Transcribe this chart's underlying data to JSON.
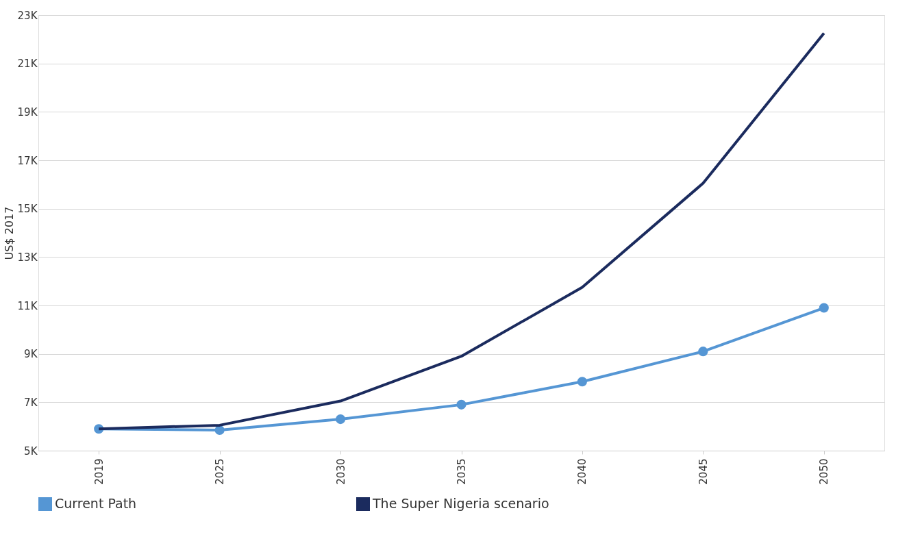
{
  "chart_data": {
    "type": "line",
    "ylabel": "US$ 2017",
    "categories": [
      "2019",
      "2025",
      "2030",
      "2035",
      "2040",
      "2045",
      "2050"
    ],
    "series": [
      {
        "name": "Current Path",
        "color": "#5596d4",
        "marker": "circle",
        "values": [
          5900,
          5850,
          6300,
          6900,
          7850,
          9100,
          10900
        ]
      },
      {
        "name": "The Super Nigeria scenario",
        "color": "#1b2b5e",
        "marker": "none",
        "values": [
          5900,
          6050,
          7050,
          8900,
          11750,
          16050,
          22250
        ]
      }
    ],
    "ylim": [
      5000,
      23000
    ],
    "yticks": [
      {
        "value": 5000,
        "label": "5K"
      },
      {
        "value": 7000,
        "label": "7K"
      },
      {
        "value": 9000,
        "label": "9K"
      },
      {
        "value": 11000,
        "label": "11K"
      },
      {
        "value": 13000,
        "label": "13K"
      },
      {
        "value": 15000,
        "label": "15K"
      },
      {
        "value": 17000,
        "label": "17K"
      },
      {
        "value": 19000,
        "label": "19K"
      },
      {
        "value": 21000,
        "label": "21K"
      },
      {
        "value": 23000,
        "label": "23K"
      }
    ],
    "grid": "y",
    "legend": "bottom",
    "line_style": "solid"
  }
}
